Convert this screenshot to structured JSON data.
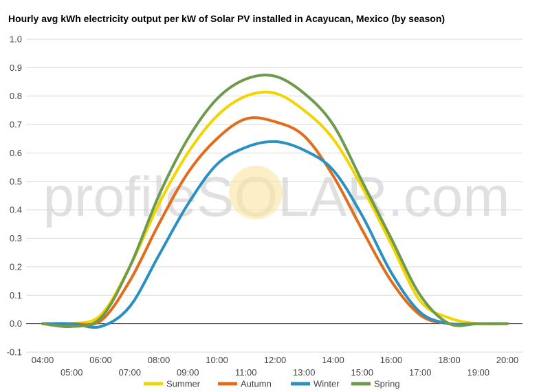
{
  "chart_data": {
    "type": "line",
    "title": "Hourly avg kWh electricity output per kW of Solar PV installed in Acayucan, Mexico (by season)",
    "xlabel": "",
    "ylabel": "",
    "watermark": "profileSOLAR.com",
    "ylim": [
      -0.1,
      1.0
    ],
    "yticks": [
      "1.0",
      "0.9",
      "0.8",
      "0.7",
      "0.6",
      "0.5",
      "0.4",
      "0.3",
      "0.2",
      "0.1",
      "0.0",
      "-0.1"
    ],
    "xticks_upper": [
      "04:00",
      "06:00",
      "08:00",
      "10:00",
      "12:00",
      "14:00",
      "16:00",
      "18:00",
      "20:00"
    ],
    "xticks_lower": [
      "05:00",
      "07:00",
      "09:00",
      "11:00",
      "13:00",
      "15:00",
      "17:00",
      "19:00"
    ],
    "x": [
      4,
      5,
      6,
      7,
      8,
      9,
      10,
      11,
      12,
      13,
      14,
      15,
      16,
      17,
      18,
      19,
      20
    ],
    "grid": true,
    "legend_position": "bottom",
    "series": [
      {
        "name": "Summer",
        "color": "#f2d500",
        "values": [
          0.0,
          0.0,
          0.03,
          0.2,
          0.42,
          0.6,
          0.73,
          0.8,
          0.81,
          0.75,
          0.65,
          0.48,
          0.28,
          0.08,
          0.02,
          0.0,
          0.0
        ]
      },
      {
        "name": "Autumn",
        "color": "#e06c1c",
        "values": [
          0.0,
          0.0,
          0.01,
          0.15,
          0.35,
          0.53,
          0.65,
          0.72,
          0.71,
          0.66,
          0.52,
          0.33,
          0.15,
          0.03,
          0.0,
          0.0,
          0.0
        ]
      },
      {
        "name": "Winter",
        "color": "#2a8fc1",
        "values": [
          0.0,
          0.0,
          -0.01,
          0.06,
          0.24,
          0.42,
          0.56,
          0.62,
          0.64,
          0.61,
          0.54,
          0.38,
          0.18,
          0.04,
          0.0,
          0.0,
          0.0
        ]
      },
      {
        "name": "Spring",
        "color": "#6e9a4e",
        "values": [
          0.0,
          -0.01,
          0.02,
          0.2,
          0.45,
          0.65,
          0.79,
          0.86,
          0.87,
          0.81,
          0.7,
          0.5,
          0.3,
          0.1,
          0.0,
          0.0,
          0.0
        ]
      }
    ]
  }
}
